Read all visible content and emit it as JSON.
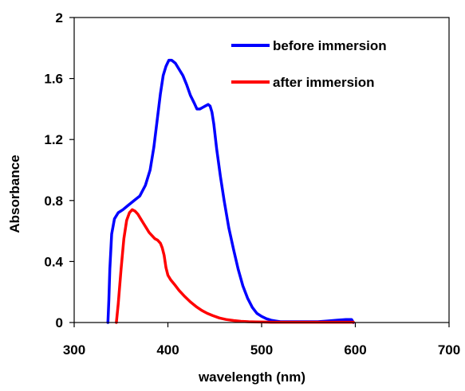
{
  "chart_data": {
    "type": "line",
    "title": "",
    "xlabel": "wavelength (nm)",
    "ylabel": "Absorbance",
    "xlim": [
      300,
      700
    ],
    "ylim": [
      0,
      2
    ],
    "x_ticks": [
      300,
      400,
      500,
      600,
      700
    ],
    "y_ticks": [
      0,
      0.4,
      0.8,
      1.2,
      1.6,
      2
    ],
    "x_tick_labels": [
      "300",
      "400",
      "500",
      "600",
      "700"
    ],
    "y_tick_labels": [
      "0",
      "0.4",
      "0.8",
      "1.2",
      "1.6",
      "2"
    ],
    "grid": false,
    "legend_position": "top-right",
    "series": [
      {
        "name": "before immersion",
        "color": "#0000ff",
        "x": [
          336,
          337,
          338,
          340,
          343,
          347,
          352,
          358,
          364,
          370,
          376,
          381,
          385,
          389,
          392,
          395,
          398,
          401,
          404,
          408,
          412,
          416,
          420,
          424,
          428,
          431,
          434,
          437,
          440,
          443,
          445,
          447,
          449,
          452,
          456,
          460,
          465,
          470,
          475,
          480,
          485,
          490,
          495,
          500,
          505,
          510,
          515,
          520,
          530,
          540,
          550,
          560,
          570,
          580,
          590,
          596,
          598
        ],
        "y": [
          0.0,
          0.15,
          0.35,
          0.58,
          0.68,
          0.72,
          0.74,
          0.77,
          0.8,
          0.83,
          0.9,
          1.0,
          1.15,
          1.35,
          1.5,
          1.62,
          1.68,
          1.72,
          1.72,
          1.7,
          1.66,
          1.62,
          1.56,
          1.49,
          1.44,
          1.4,
          1.4,
          1.41,
          1.42,
          1.43,
          1.42,
          1.38,
          1.3,
          1.14,
          0.96,
          0.8,
          0.62,
          0.48,
          0.35,
          0.24,
          0.16,
          0.1,
          0.06,
          0.04,
          0.025,
          0.015,
          0.01,
          0.005,
          0.005,
          0.005,
          0.005,
          0.005,
          0.01,
          0.015,
          0.02,
          0.02,
          0.0
        ]
      },
      {
        "name": "after immersion",
        "color": "#ff0000",
        "x": [
          345,
          347,
          350,
          353,
          356,
          359,
          362,
          365,
          368,
          371,
          374,
          377,
          380,
          383,
          386,
          389,
          392,
          394,
          396,
          398,
          400,
          403,
          407,
          412,
          418,
          424,
          430,
          436,
          442,
          448,
          455,
          462,
          470,
          478,
          486,
          494,
          502,
          510,
          520,
          530,
          540,
          550,
          560,
          570,
          580,
          590,
          598
        ],
        "y": [
          0.0,
          0.12,
          0.35,
          0.55,
          0.67,
          0.72,
          0.74,
          0.73,
          0.71,
          0.68,
          0.65,
          0.62,
          0.59,
          0.57,
          0.55,
          0.54,
          0.52,
          0.49,
          0.44,
          0.36,
          0.31,
          0.28,
          0.25,
          0.21,
          0.17,
          0.135,
          0.105,
          0.08,
          0.06,
          0.045,
          0.03,
          0.02,
          0.013,
          0.008,
          0.005,
          0.004,
          0.003,
          0.002,
          0.002,
          0.002,
          0.002,
          0.002,
          0.002,
          0.002,
          0.002,
          0.002,
          0.002
        ]
      }
    ]
  }
}
